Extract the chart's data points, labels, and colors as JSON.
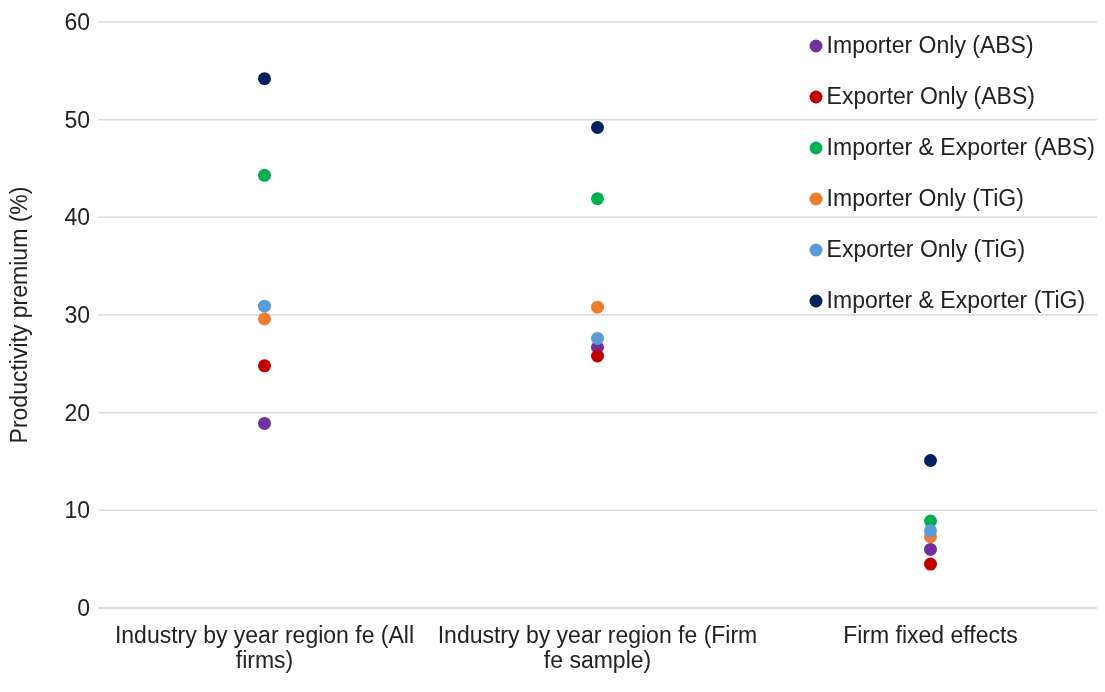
{
  "chart_data": {
    "type": "scatter",
    "ylabel": "Productivity premium (%)",
    "categories": [
      "Industry by year region fe (All firms)",
      "Industry by year region fe (Firm fe sample)",
      "Firm fixed effects"
    ],
    "ylim": [
      0,
      60
    ],
    "yticks": [
      0,
      10,
      20,
      30,
      40,
      50,
      60
    ],
    "grid": "y",
    "legend": "top right",
    "marker": "circle",
    "series": [
      {
        "name": "Importer Only (ABS)",
        "color": "#7030a0",
        "values": [
          18.9,
          26.7,
          6.0
        ]
      },
      {
        "name": "Exporter Only (ABS)",
        "color": "#c00000",
        "values": [
          24.8,
          25.8,
          4.5
        ]
      },
      {
        "name": "Importer & Exporter (ABS)",
        "color": "#00b050",
        "values": [
          44.3,
          41.9,
          8.9
        ]
      },
      {
        "name": "Importer Only (TiG)",
        "color": "#ed7d31",
        "values": [
          29.6,
          30.8,
          7.3
        ]
      },
      {
        "name": "Exporter Only (TiG)",
        "color": "#5b9bd5",
        "values": [
          30.9,
          27.6,
          7.9
        ]
      },
      {
        "name": "Importer & Exporter (TiG)",
        "color": "#002060",
        "values": [
          54.2,
          49.2,
          15.1
        ]
      }
    ]
  }
}
